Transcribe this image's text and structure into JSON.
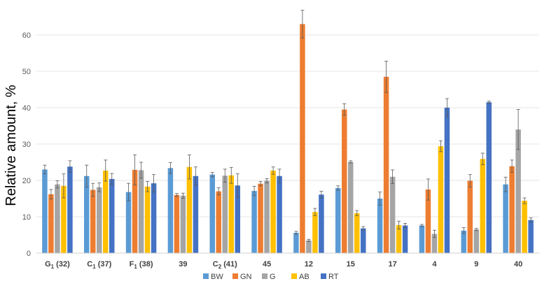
{
  "chart_data": {
    "type": "bar",
    "title": "",
    "xlabel": "",
    "ylabel": "Relative amount, %",
    "ylim": [
      0,
      65
    ],
    "yticks": [
      0,
      10,
      20,
      30,
      40,
      50,
      60
    ],
    "grid": true,
    "legend_position": "bottom",
    "categories": [
      {
        "main": "G",
        "sub": "1",
        "suffix": " (32)"
      },
      {
        "main": "C",
        "sub": "1",
        "suffix": " (37)"
      },
      {
        "main": "F",
        "sub": "1",
        "suffix": " (38)"
      },
      {
        "main": "39",
        "sub": "",
        "suffix": ""
      },
      {
        "main": "C",
        "sub": "2",
        "suffix": " (41)"
      },
      {
        "main": "45",
        "sub": "",
        "suffix": ""
      },
      {
        "main": "12",
        "sub": "",
        "suffix": ""
      },
      {
        "main": "15",
        "sub": "",
        "suffix": ""
      },
      {
        "main": "17",
        "sub": "",
        "suffix": ""
      },
      {
        "main": "4",
        "sub": "",
        "suffix": ""
      },
      {
        "main": "9",
        "sub": "",
        "suffix": ""
      },
      {
        "main": "40",
        "sub": "",
        "suffix": ""
      }
    ],
    "series": [
      {
        "name": "BW",
        "color": "#5B9BD5",
        "values": [
          23.0,
          21.2,
          16.8,
          23.4,
          21.6,
          17.1,
          5.6,
          17.9,
          15.0,
          7.6,
          6.2,
          18.9
        ],
        "errors": [
          1.2,
          3.0,
          2.4,
          1.5,
          0.6,
          1.3,
          0.4,
          0.6,
          1.8,
          0.3,
          0.8,
          2.0
        ]
      },
      {
        "name": "GN",
        "color": "#ED7D31",
        "values": [
          16.2,
          17.4,
          22.9,
          16.0,
          17.0,
          19.1,
          63.0,
          39.5,
          48.5,
          17.5,
          19.9,
          23.9
        ],
        "errors": [
          1.3,
          1.8,
          4.1,
          0.4,
          1.0,
          0.6,
          3.8,
          1.6,
          4.3,
          2.9,
          1.7,
          1.7
        ]
      },
      {
        "name": "G",
        "color": "#A5A5A5",
        "values": [
          18.9,
          18.1,
          22.8,
          15.8,
          21.3,
          19.9,
          3.5,
          25.1,
          21.0,
          5.3,
          6.5,
          34.0
        ],
        "errors": [
          1.0,
          1.2,
          2.2,
          0.7,
          1.8,
          0.6,
          0.3,
          0.3,
          1.9,
          1.0,
          0.3,
          5.5
        ]
      },
      {
        "name": "AB",
        "color": "#FFC000",
        "values": [
          18.5,
          22.7,
          18.3,
          23.7,
          21.4,
          22.7,
          11.3,
          11.0,
          7.7,
          29.4,
          25.9,
          14.4
        ],
        "errors": [
          3.3,
          2.9,
          1.4,
          3.3,
          2.2,
          1.0,
          1.0,
          0.7,
          1.1,
          1.5,
          1.6,
          0.8
        ]
      },
      {
        "name": "RT",
        "color": "#4472C4",
        "values": [
          23.8,
          20.4,
          19.2,
          21.2,
          18.6,
          21.2,
          16.1,
          6.8,
          7.6,
          40.0,
          41.5,
          9.1
        ],
        "errors": [
          1.6,
          1.5,
          2.4,
          2.5,
          3.2,
          1.9,
          0.9,
          0.5,
          0.6,
          2.5,
          0.3,
          0.6
        ]
      }
    ]
  }
}
